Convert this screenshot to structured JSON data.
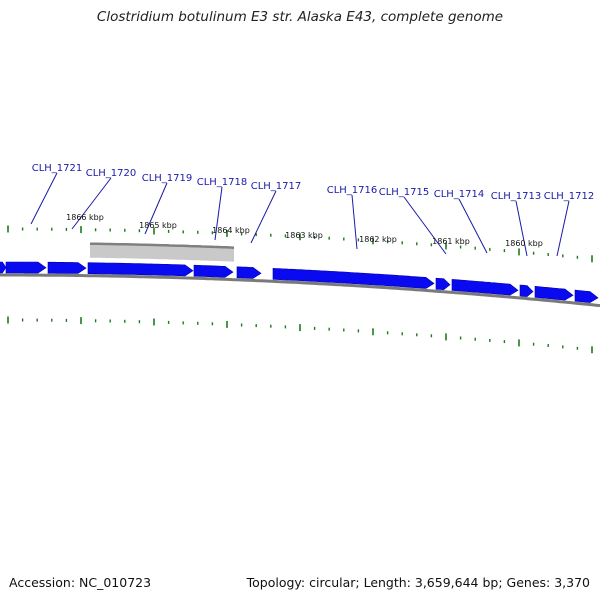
{
  "title": "Clostridium botulinum E3 str. Alaska E43, complete genome",
  "footer": {
    "accession": "Accession: NC_010723",
    "summary": "Topology: circular; Length: 3,659,644 bp; Genes: 3,370"
  },
  "colors": {
    "gene": "#0a0af0",
    "gene_label": "#1a1aa6",
    "leader_line": "#1a1aa6",
    "tick": "#1e7a1e",
    "backbone": "#7a7a7a",
    "selection": "#c0c0c0",
    "selection_edge": "#808080"
  },
  "chart_data": {
    "type": "genome-map",
    "scale_unit": "kbp",
    "scale_labels": [
      "1866 kbp",
      "1865 kbp",
      "1864 kbp",
      "1863 kbp",
      "1862 kbp",
      "1861 kbp",
      "1860 kbp"
    ],
    "genes": [
      {
        "name": "CLH_1721"
      },
      {
        "name": "CLH_1720"
      },
      {
        "name": "CLH_1719"
      },
      {
        "name": "CLH_1718"
      },
      {
        "name": "CLH_1717"
      },
      {
        "name": "CLH_1716"
      },
      {
        "name": "CLH_1715"
      },
      {
        "name": "CLH_1714"
      },
      {
        "name": "CLH_1713"
      },
      {
        "name": "CLH_1712"
      }
    ]
  }
}
